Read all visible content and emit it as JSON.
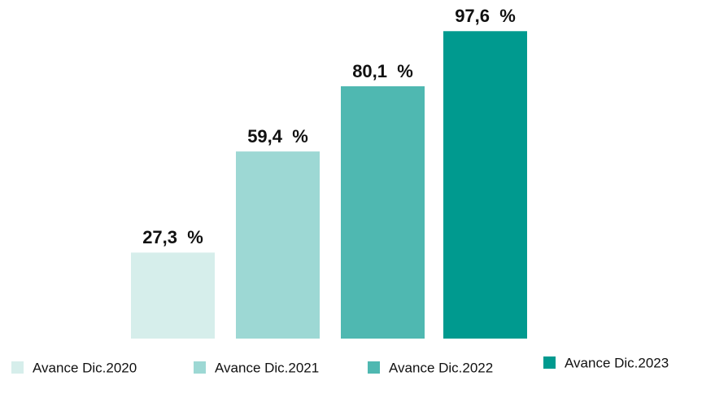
{
  "chart_data": {
    "type": "bar",
    "series": [
      {
        "name": "Avance Dic.2020",
        "color": "#d6eeeb",
        "values": [
          27.3
        ],
        "value_labels": [
          "27,3  %"
        ]
      },
      {
        "name": "Avance Dic.2021",
        "color": "#9dd8d4",
        "values": [
          59.4
        ],
        "value_labels": [
          "59,4  %"
        ]
      },
      {
        "name": "Avance Dic.2022",
        "color": "#4fb8b1",
        "values": [
          80.1
        ],
        "value_labels": [
          "80,1  %"
        ]
      },
      {
        "name": "Avance Dic.2023",
        "color": "#009a8f",
        "values": [
          97.6
        ],
        "value_labels": [
          "97,6  %"
        ]
      }
    ]
  }
}
